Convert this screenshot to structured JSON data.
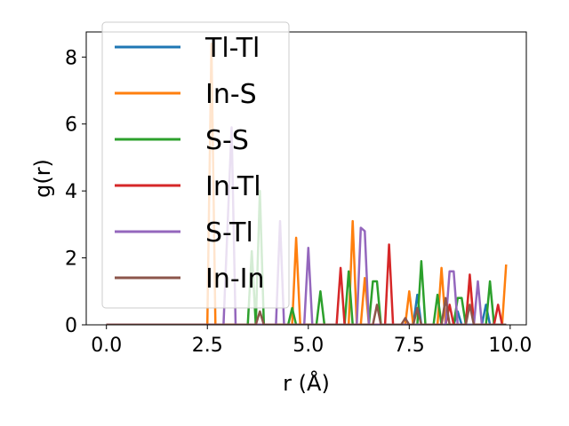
{
  "chart_data": {
    "type": "line",
    "title": "",
    "xlabel": "r (Å)",
    "ylabel": "g(r)",
    "xlim": [
      -0.5,
      10.4
    ],
    "ylim": [
      0,
      8.75
    ],
    "xticks": [
      0.0,
      2.5,
      5.0,
      7.5,
      10.0
    ],
    "xtick_labels": [
      "0.0",
      "2.5",
      "5.0",
      "7.5",
      "10.0"
    ],
    "yticks": [
      0,
      2,
      4,
      6,
      8
    ],
    "ytick_labels": [
      "0",
      "2",
      "4",
      "6",
      "8"
    ],
    "grid": false,
    "legend_position": "top-left",
    "series": [
      {
        "name": "Tl-Tl",
        "color": "#1f77b4",
        "points": [
          [
            0,
            0
          ],
          [
            7.6,
            0
          ],
          [
            7.7,
            0.9
          ],
          [
            7.8,
            0
          ],
          [
            8.6,
            0
          ],
          [
            8.7,
            0.4
          ],
          [
            8.8,
            0
          ],
          [
            9.3,
            0
          ],
          [
            9.4,
            0.6
          ],
          [
            9.5,
            0
          ],
          [
            9.9,
            0
          ]
        ]
      },
      {
        "name": "In-S",
        "color": "#ff7f0e",
        "points": [
          [
            0,
            0
          ],
          [
            2.5,
            0
          ],
          [
            2.6,
            8.4
          ],
          [
            2.7,
            0
          ],
          [
            4.6,
            0
          ],
          [
            4.7,
            2.6
          ],
          [
            4.8,
            0
          ],
          [
            6.0,
            0
          ],
          [
            6.1,
            3.1
          ],
          [
            6.2,
            0
          ],
          [
            6.3,
            0
          ],
          [
            6.4,
            1.4
          ],
          [
            6.5,
            0
          ],
          [
            7.4,
            0
          ],
          [
            7.5,
            1.0
          ],
          [
            7.6,
            0
          ],
          [
            8.2,
            0
          ],
          [
            8.3,
            1.7
          ],
          [
            8.4,
            0
          ],
          [
            8.9,
            0
          ],
          [
            9.0,
            1.4
          ],
          [
            9.1,
            0
          ],
          [
            9.8,
            0
          ],
          [
            9.9,
            1.8
          ]
        ]
      },
      {
        "name": "S-S",
        "color": "#2ca02c",
        "points": [
          [
            0,
            0
          ],
          [
            3.5,
            0
          ],
          [
            3.6,
            2.2
          ],
          [
            3.7,
            0
          ],
          [
            3.8,
            4.0
          ],
          [
            3.9,
            0
          ],
          [
            4.5,
            0
          ],
          [
            4.6,
            0.5
          ],
          [
            4.7,
            0
          ],
          [
            5.2,
            0
          ],
          [
            5.3,
            1.0
          ],
          [
            5.4,
            0
          ],
          [
            5.9,
            0
          ],
          [
            6.0,
            1.6
          ],
          [
            6.1,
            0
          ],
          [
            6.5,
            0
          ],
          [
            6.6,
            1.3
          ],
          [
            6.7,
            1.3
          ],
          [
            6.8,
            0
          ],
          [
            7.7,
            0
          ],
          [
            7.8,
            1.9
          ],
          [
            7.9,
            0
          ],
          [
            8.1,
            0
          ],
          [
            8.2,
            0.9
          ],
          [
            8.3,
            0
          ],
          [
            8.6,
            0
          ],
          [
            8.7,
            0.8
          ],
          [
            8.8,
            0.8
          ],
          [
            8.9,
            0
          ],
          [
            9.4,
            0
          ],
          [
            9.5,
            1.3
          ],
          [
            9.6,
            0
          ],
          [
            9.9,
            0
          ]
        ]
      },
      {
        "name": "In-Tl",
        "color": "#d62728",
        "points": [
          [
            0,
            0
          ],
          [
            5.7,
            0
          ],
          [
            5.8,
            1.7
          ],
          [
            5.9,
            0
          ],
          [
            6.9,
            0
          ],
          [
            7.0,
            2.4
          ],
          [
            7.1,
            0
          ],
          [
            8.4,
            0
          ],
          [
            8.5,
            0.6
          ],
          [
            8.6,
            0
          ],
          [
            8.9,
            0
          ],
          [
            9.0,
            1.5
          ],
          [
            9.1,
            0
          ],
          [
            9.6,
            0
          ],
          [
            9.7,
            0.6
          ],
          [
            9.8,
            0
          ]
        ]
      },
      {
        "name": "S-Tl",
        "color": "#9467bd",
        "points": [
          [
            0,
            0
          ],
          [
            2.9,
            0
          ],
          [
            3.1,
            5.9
          ],
          [
            3.2,
            0
          ],
          [
            4.2,
            0
          ],
          [
            4.3,
            3.1
          ],
          [
            4.4,
            0
          ],
          [
            4.9,
            0
          ],
          [
            5.0,
            2.3
          ],
          [
            5.1,
            0
          ],
          [
            6.2,
            0
          ],
          [
            6.3,
            2.9
          ],
          [
            6.4,
            2.8
          ],
          [
            6.5,
            0
          ],
          [
            8.4,
            0
          ],
          [
            8.5,
            1.6
          ],
          [
            8.6,
            1.6
          ],
          [
            8.7,
            0
          ],
          [
            9.1,
            0
          ],
          [
            9.2,
            1.3
          ],
          [
            9.3,
            0
          ],
          [
            9.9,
            0
          ]
        ]
      },
      {
        "name": "In-In",
        "color": "#8c564b",
        "points": [
          [
            0,
            0
          ],
          [
            3.7,
            0
          ],
          [
            3.8,
            0.4
          ],
          [
            3.9,
            0
          ],
          [
            6.6,
            0
          ],
          [
            6.7,
            0.6
          ],
          [
            6.8,
            0
          ],
          [
            7.3,
            0
          ],
          [
            7.4,
            0.2
          ],
          [
            7.5,
            0
          ],
          [
            7.6,
            0
          ],
          [
            7.7,
            0.5
          ],
          [
            7.8,
            0
          ],
          [
            8.3,
            0
          ],
          [
            8.4,
            0.8
          ],
          [
            8.5,
            0
          ],
          [
            8.9,
            0
          ],
          [
            9.0,
            0.6
          ],
          [
            9.1,
            0
          ],
          [
            9.9,
            0
          ]
        ]
      }
    ]
  }
}
